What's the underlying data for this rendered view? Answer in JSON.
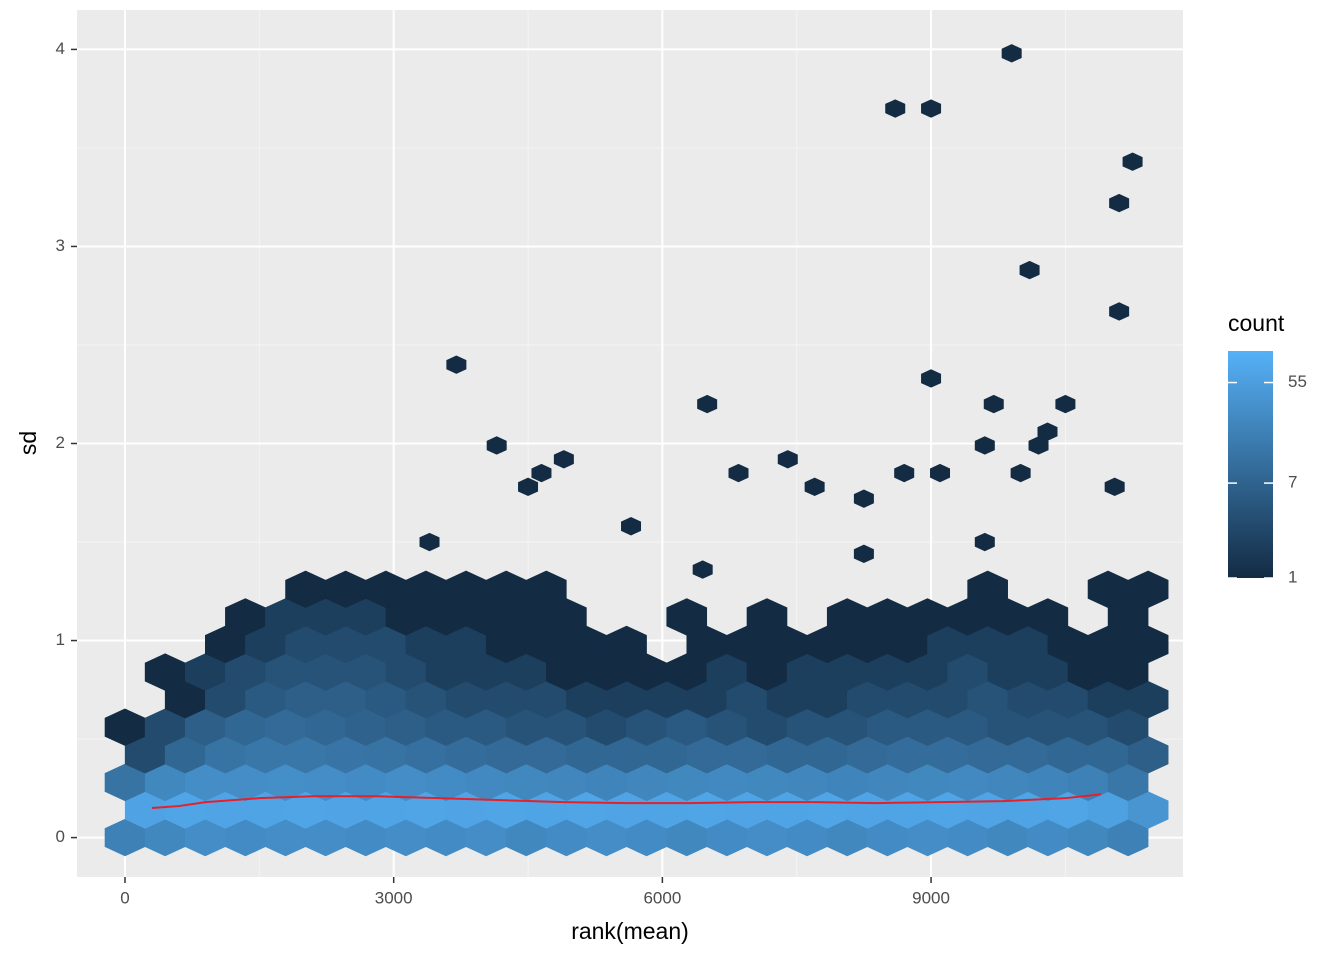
{
  "chart_data": {
    "type": "hexbin",
    "x_label": "rank(mean)",
    "y_label": "sd",
    "xlim": [
      -536,
      11813
    ],
    "ylim": [
      -0.2,
      4.2
    ],
    "xticks": [
      0,
      3000,
      6000,
      9000
    ],
    "yticks": [
      0,
      1,
      2,
      3,
      4
    ],
    "grid": true,
    "x": [
      0,
      448,
      896,
      1344,
      1792,
      2240,
      2688,
      3136,
      3584,
      4032,
      4480,
      4928,
      5376,
      5824,
      6272,
      6720,
      7168,
      7616,
      8064,
      8512,
      8960,
      9408,
      9856,
      10304,
      10752,
      11200
    ],
    "rows": [
      {
        "y": 0,
        "counts": [
          20,
          25,
          30,
          28,
          30,
          30,
          28,
          30,
          28,
          30,
          25,
          28,
          30,
          28,
          25,
          28,
          30,
          28,
          25,
          28,
          30,
          28,
          25,
          28,
          25,
          20
        ]
      },
      {
        "y": 0.14,
        "counts": [
          65,
          70,
          68,
          66,
          70,
          68,
          66,
          70,
          68,
          70,
          66,
          70,
          68,
          66,
          70,
          68,
          66,
          70,
          68,
          66,
          70,
          68,
          66,
          70,
          60,
          40
        ]
      },
      {
        "y": 0.28,
        "counts": [
          12,
          25,
          30,
          30,
          32,
          30,
          28,
          30,
          28,
          26,
          25,
          24,
          22,
          24,
          25,
          26,
          25,
          24,
          22,
          24,
          25,
          26,
          24,
          22,
          20,
          14
        ]
      },
      {
        "y": 0.42,
        "counts": [
          3,
          8,
          12,
          14,
          14,
          13,
          12,
          11,
          10,
          9,
          9,
          8,
          8,
          8,
          9,
          9,
          8,
          8,
          9,
          10,
          10,
          9,
          9,
          8,
          8,
          6
        ]
      },
      {
        "y": 0.56,
        "counts": [
          1,
          3,
          6,
          8,
          9,
          8,
          7,
          6,
          5,
          5,
          4,
          4,
          3,
          4,
          5,
          4,
          3,
          4,
          4,
          5,
          5,
          5,
          4,
          4,
          4,
          3
        ]
      },
      {
        "y": 0.7,
        "counts": [
          null,
          1,
          3,
          5,
          6,
          6,
          5,
          4,
          3,
          3,
          3,
          2,
          2,
          2,
          2,
          3,
          2,
          2,
          3,
          3,
          3,
          4,
          3,
          3,
          2,
          2
        ]
      },
      {
        "y": 0.84,
        "counts": [
          null,
          1,
          2,
          3,
          4,
          4,
          4,
          3,
          2,
          2,
          2,
          1,
          1,
          1,
          1,
          2,
          1,
          2,
          2,
          2,
          2,
          3,
          2,
          2,
          1,
          1
        ]
      },
      {
        "y": 0.98,
        "counts": [
          null,
          null,
          1,
          2,
          3,
          3,
          3,
          2,
          2,
          1,
          1,
          1,
          1,
          null,
          1,
          1,
          1,
          1,
          1,
          1,
          2,
          2,
          2,
          1,
          1,
          1
        ]
      },
      {
        "y": 1.12,
        "counts": [
          null,
          null,
          null,
          1,
          2,
          2,
          2,
          1,
          1,
          1,
          1,
          1,
          null,
          null,
          1,
          null,
          1,
          null,
          1,
          1,
          1,
          1,
          1,
          1,
          null,
          1
        ]
      },
      {
        "y": 1.26,
        "counts": [
          null,
          null,
          null,
          null,
          1,
          1,
          1,
          1,
          1,
          1,
          1,
          null,
          null,
          null,
          null,
          null,
          null,
          null,
          null,
          null,
          null,
          1,
          null,
          null,
          1,
          1
        ]
      }
    ],
    "outliers": {
      "x": [
        9900,
        8600,
        9000,
        11250,
        11100,
        10100,
        11100,
        3700,
        9000,
        6500,
        9700,
        10500,
        4150,
        9600,
        10200,
        10300,
        4900,
        7400,
        4650,
        6850,
        8700,
        9100,
        10000,
        4500,
        7700,
        11050,
        5650,
        8250,
        9600,
        6450,
        8250,
        3400
      ],
      "y": [
        3.98,
        3.7,
        3.7,
        3.43,
        3.22,
        2.88,
        2.67,
        2.4,
        2.33,
        2.2,
        2.2,
        2.2,
        1.99,
        1.99,
        1.99,
        2.06,
        1.92,
        1.92,
        1.85,
        1.85,
        1.85,
        1.85,
        1.85,
        1.78,
        1.78,
        1.78,
        1.58,
        1.72,
        1.5,
        1.36,
        1.44,
        1.5
      ]
    },
    "smooth": {
      "color": "#e4202a",
      "x": [
        300,
        600,
        900,
        1500,
        2100,
        2800,
        3500,
        4200,
        4900,
        5600,
        6300,
        7000,
        7700,
        8400,
        9100,
        9800,
        10500,
        10900
      ],
      "y": [
        0.15,
        0.16,
        0.18,
        0.2,
        0.21,
        0.21,
        0.2,
        0.19,
        0.18,
        0.175,
        0.175,
        0.18,
        0.18,
        0.175,
        0.18,
        0.185,
        0.2,
        0.22
      ]
    },
    "legend": {
      "title": "count",
      "lim": [
        1,
        105
      ],
      "ticks": [
        1,
        7,
        55
      ],
      "log": true,
      "colors": [
        "#132B43",
        "#56B1F7"
      ]
    }
  }
}
